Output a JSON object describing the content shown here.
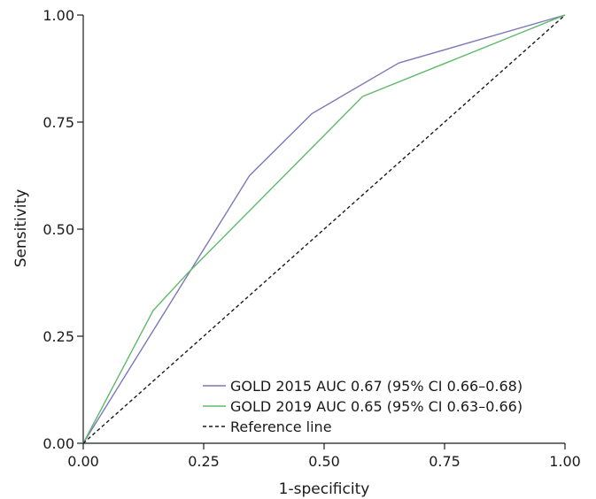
{
  "chart_data": {
    "type": "line",
    "title": "",
    "xlabel": "1-specificity",
    "ylabel": "Sensitivity",
    "xlim": [
      0,
      1
    ],
    "ylim": [
      0,
      1
    ],
    "x_ticks": [
      "0.00",
      "0.25",
      "0.50",
      "0.75",
      "1.00"
    ],
    "y_ticks": [
      "0.00",
      "0.25",
      "0.50",
      "0.75",
      "1.00"
    ],
    "grid": false,
    "legend_position": "bottom-right",
    "series": [
      {
        "name": "GOLD 2015 AUC 0.67 (95% CI 0.66–0.68)",
        "color": "#7b78b8",
        "dash": "solid",
        "points": [
          [
            0,
            0
          ],
          [
            0.345,
            0.625
          ],
          [
            0.475,
            0.77
          ],
          [
            0.655,
            0.888
          ],
          [
            1,
            1
          ]
        ]
      },
      {
        "name": "GOLD 2019 AUC 0.65 (95% CI 0.63–0.66)",
        "color": "#5fba6a",
        "dash": "solid",
        "points": [
          [
            0,
            0
          ],
          [
            0.145,
            0.31
          ],
          [
            0.215,
            0.395
          ],
          [
            0.58,
            0.81
          ],
          [
            1,
            1
          ]
        ]
      },
      {
        "name": "Reference line",
        "color": "#1a1a1a",
        "dash": "dashed",
        "points": [
          [
            0,
            0
          ],
          [
            1,
            1
          ]
        ]
      }
    ]
  }
}
